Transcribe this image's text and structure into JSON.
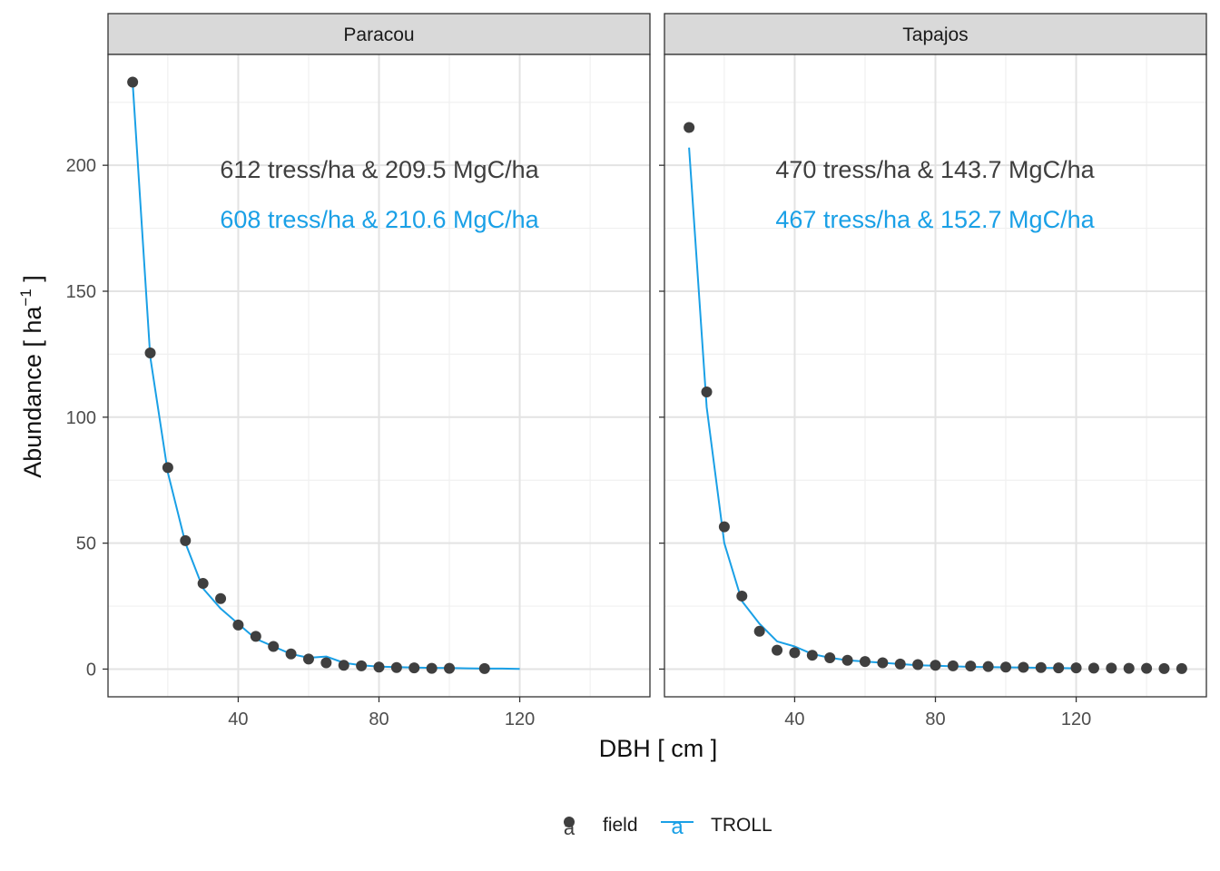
{
  "chart_data": {
    "type": "scatter",
    "xlabel": "DBH [ cm ]",
    "ylabel": "Abundance [ ha",
    "ylabel_sup": "−1",
    "ylabel_end": " ]",
    "xlim": [
      3,
      157
    ],
    "ylim": [
      -11,
      244
    ],
    "x_ticks": [
      40,
      80,
      120
    ],
    "y_ticks": [
      0,
      50,
      100,
      150,
      200
    ],
    "grid": true,
    "legend_position": "bottom",
    "legend": [
      {
        "name": "field",
        "key": "a",
        "color": "#3f3f3f",
        "style": "point"
      },
      {
        "name": "TROLL",
        "key": "a",
        "color": "#1aa0e6",
        "style": "line"
      }
    ],
    "colors": {
      "field": "#3f3f3f",
      "TROLL": "#1aa0e6"
    },
    "panels": [
      {
        "title": "Paracou",
        "annotation_field": "612 tress/ha & 209.5 MgC/ha",
        "annotation_troll": "608 tress/ha & 210.6 MgC/ha",
        "series": [
          {
            "name": "field",
            "type": "scatter",
            "x": [
              10,
              15,
              20,
              25,
              30,
              35,
              40,
              45,
              50,
              55,
              60,
              65,
              70,
              75,
              80,
              85,
              90,
              95,
              100,
              110
            ],
            "y": [
              233,
              125.5,
              80,
              51,
              34,
              28,
              17.5,
              13,
              9,
              6,
              4,
              2.5,
              1.5,
              1.3,
              0.8,
              0.6,
              0.5,
              0.3,
              0.3,
              0.2
            ]
          },
          {
            "name": "TROLL",
            "type": "line",
            "x": [
              10,
              15,
              20,
              25,
              30,
              35,
              40,
              45,
              50,
              55,
              60,
              65,
              70,
              75,
              80,
              85,
              90,
              95,
              100,
              105,
              110,
              115,
              120
            ],
            "y": [
              233,
              124,
              78,
              50,
              32,
              24,
              18,
              12,
              9,
              6,
              4.5,
              5,
              2.5,
              1.5,
              1,
              0.8,
              0.6,
              0.5,
              0.4,
              0.3,
              0.2,
              0.2,
              0.1
            ]
          }
        ]
      },
      {
        "title": "Tapajos",
        "annotation_field": "470 tress/ha & 143.7 MgC/ha",
        "annotation_troll": "467 tress/ha & 152.7 MgC/ha",
        "series": [
          {
            "name": "field",
            "type": "scatter",
            "x": [
              10,
              15,
              20,
              25,
              30,
              35,
              40,
              45,
              50,
              55,
              60,
              65,
              70,
              75,
              80,
              85,
              90,
              95,
              100,
              105,
              110,
              115,
              120,
              125,
              130,
              135,
              140,
              145,
              150
            ],
            "y": [
              215,
              110,
              56.5,
              29,
              15,
              7.5,
              6.5,
              5.5,
              4.5,
              3.5,
              3,
              2.5,
              2,
              1.8,
              1.5,
              1.3,
              1.2,
              1,
              0.8,
              0.7,
              0.6,
              0.5,
              0.5,
              0.4,
              0.4,
              0.3,
              0.3,
              0.2,
              0.2
            ]
          },
          {
            "name": "TROLL",
            "type": "line",
            "x": [
              10,
              15,
              20,
              25,
              30,
              35,
              40,
              45,
              50,
              55,
              60,
              65,
              70,
              75,
              80,
              85,
              90,
              95,
              100,
              105,
              110,
              115,
              120
            ],
            "y": [
              207,
              104,
              50,
              27,
              18,
              11,
              9,
              6,
              4.5,
              3.5,
              3,
              2.5,
              2,
              1.5,
              1.3,
              1.1,
              0.9,
              0.8,
              0.7,
              0.6,
              0.5,
              0.4,
              0.3
            ]
          }
        ]
      }
    ]
  }
}
